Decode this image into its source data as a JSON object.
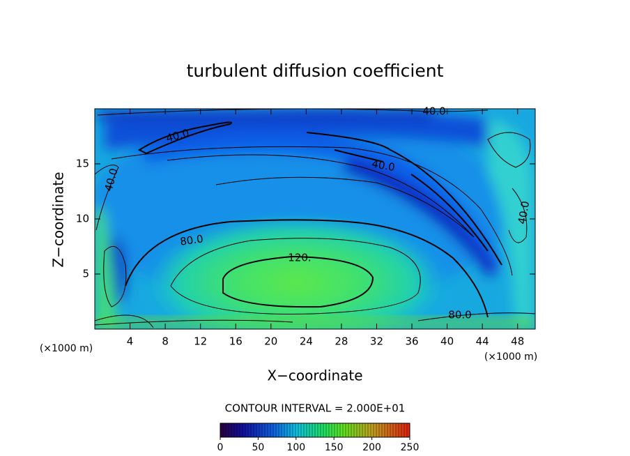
{
  "chart_data": {
    "type": "contour",
    "title": "turbulent diffusion coefficient",
    "x_label": "X−coordinate",
    "y_label": "Z−coordinate",
    "unit_labels": [
      "(×1000 m)",
      "(×1000 m)"
    ],
    "xlim": [
      0,
      50
    ],
    "xticks": [
      4,
      8,
      12,
      16,
      20,
      24,
      28,
      32,
      36,
      40,
      44,
      48
    ],
    "ylim": [
      0,
      20
    ],
    "yticks": [
      5,
      10,
      15
    ],
    "contour_interval_text": "CONTOUR INTERVAL = 2.000E+01",
    "contour_labels": [
      {
        "value": 40,
        "label": "40.0"
      },
      {
        "value": 40,
        "label": "40.0"
      },
      {
        "value": 40,
        "label": "40.0"
      },
      {
        "value": 40,
        "label": "40.0"
      },
      {
        "value": 40,
        "label": "40.0"
      },
      {
        "value": 80,
        "label": "80.0"
      },
      {
        "value": 120,
        "label": "120."
      },
      {
        "value": 80,
        "label": "80.0"
      }
    ],
    "colorbar": {
      "lim": [
        0,
        250
      ],
      "ticks": [
        0,
        50,
        100,
        150,
        200,
        250
      ]
    }
  }
}
